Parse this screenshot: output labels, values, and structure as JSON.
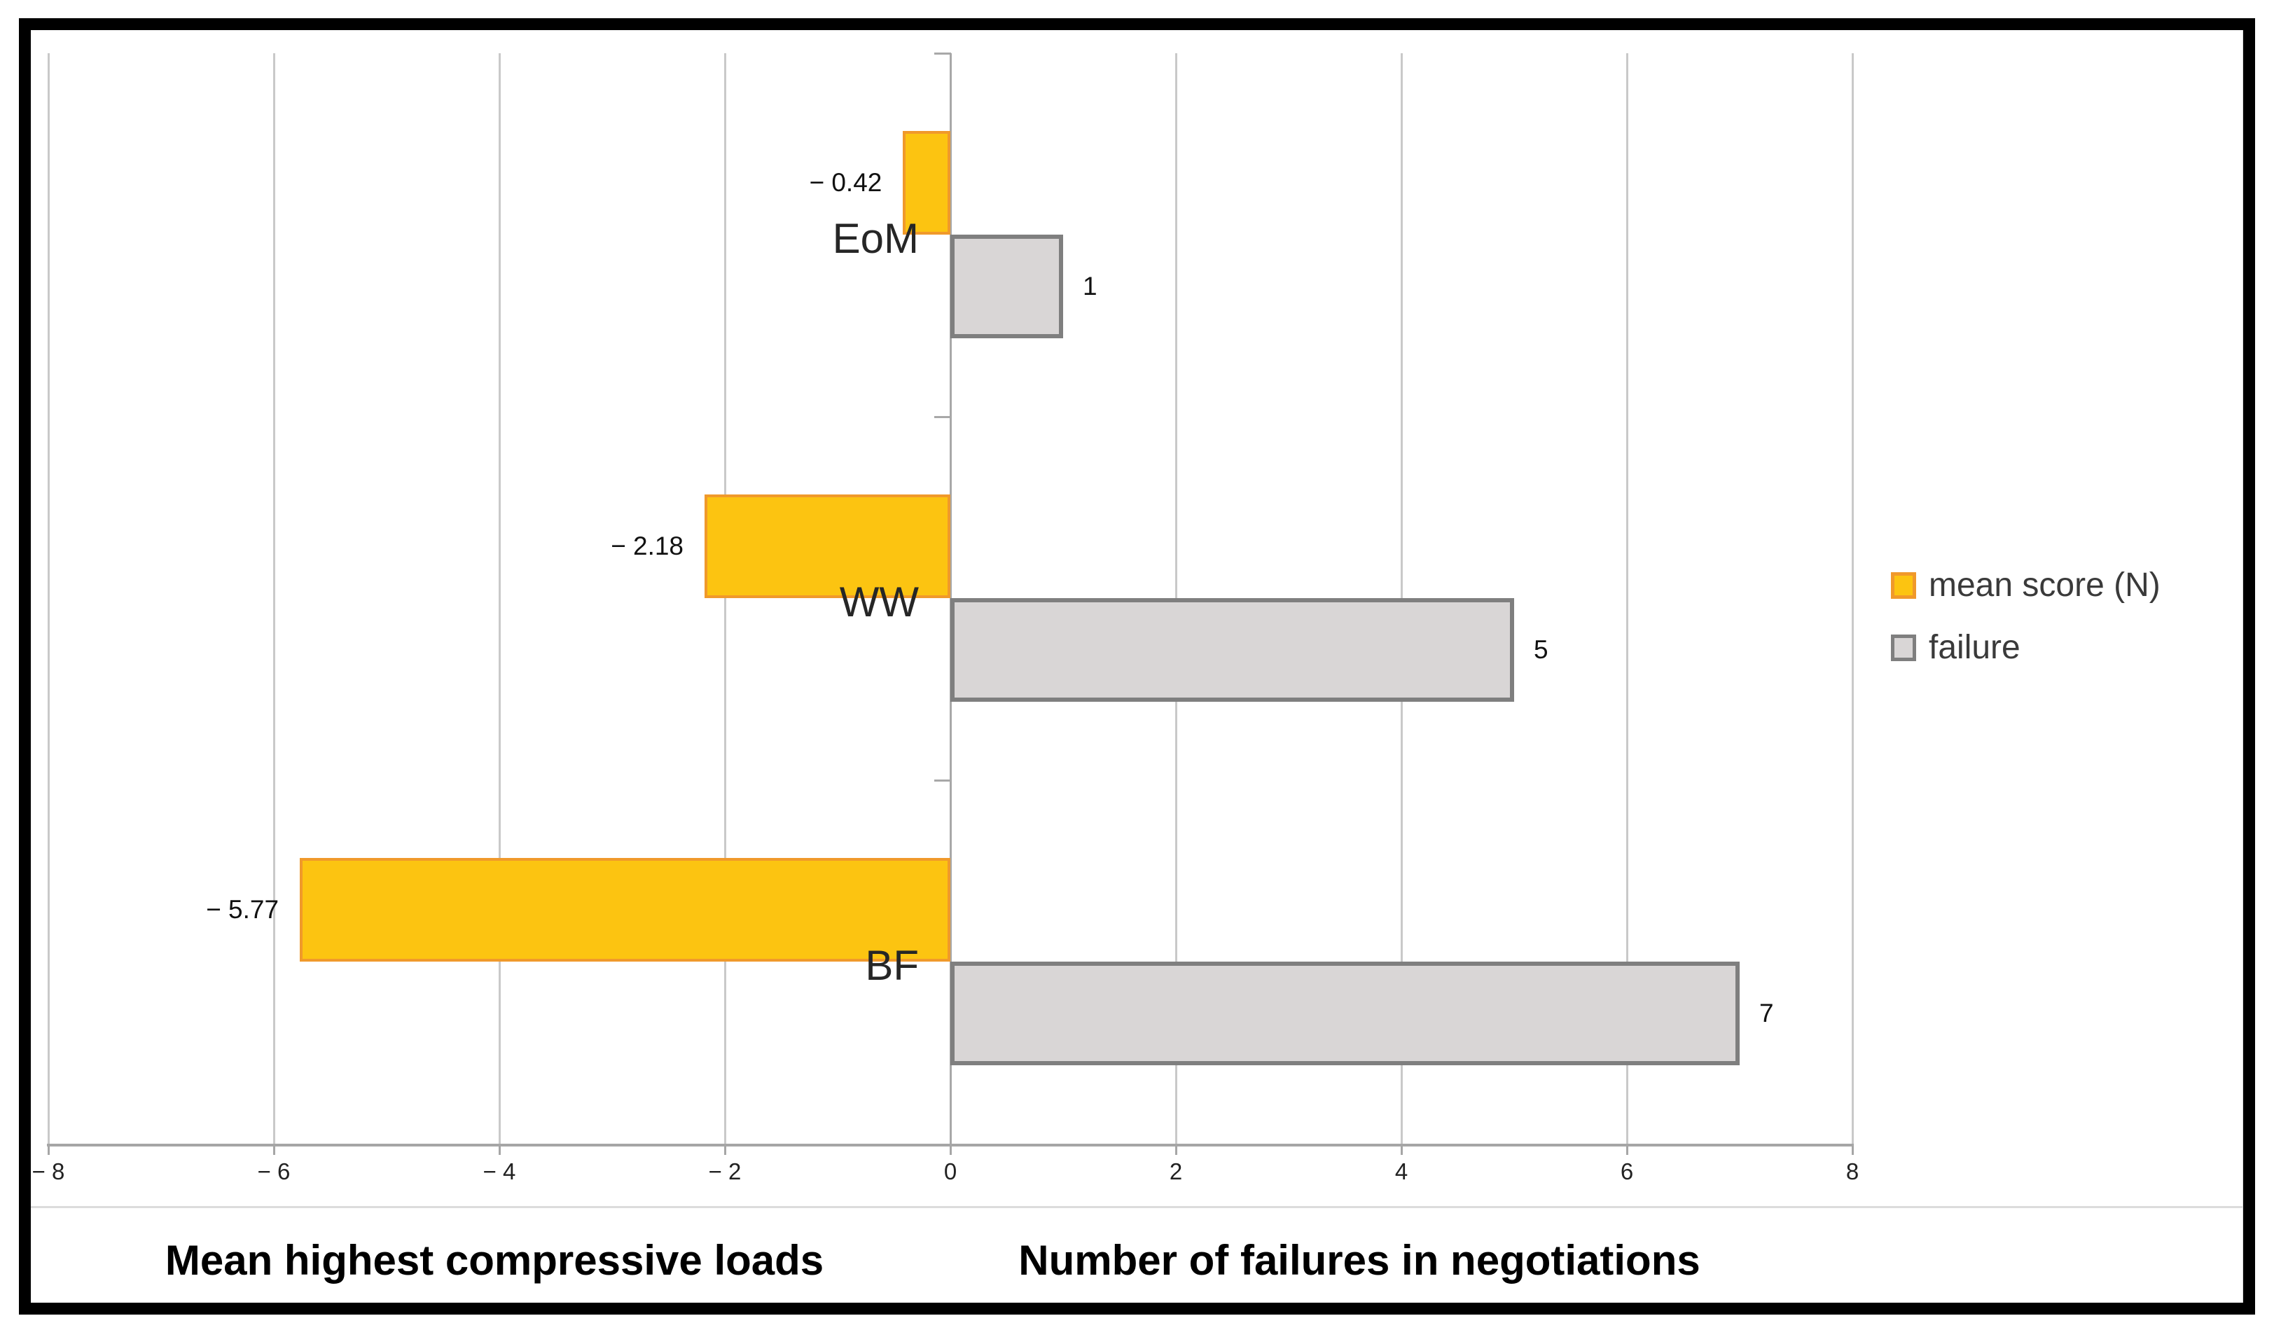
{
  "chart_data": {
    "type": "bar",
    "orientation": "horizontal-diverging",
    "categories": [
      "EoM",
      "WW",
      "BF"
    ],
    "series": [
      {
        "name": "mean score (N)",
        "key": "mean-score",
        "values": [
          -0.42,
          -2.18,
          -5.77
        ],
        "value_labels": [
          "− 0.42",
          "− 2.18",
          "− 5.77"
        ],
        "fill": "#fcc411",
        "border": "#f0992b"
      },
      {
        "name": "failure",
        "key": "failure",
        "values": [
          1,
          5,
          7
        ],
        "value_labels": [
          "1",
          "5",
          "7"
        ],
        "fill": "#d9d6d6",
        "border": "#7f7f7f"
      }
    ],
    "xlim": [
      -8,
      8
    ],
    "x_ticks": [
      -8,
      -6,
      -4,
      -2,
      0,
      2,
      4,
      6,
      8
    ],
    "x_tick_labels": [
      "− 8",
      "− 6",
      "− 4",
      "− 2",
      "0",
      "2",
      "4",
      "6",
      "8"
    ],
    "grid": true,
    "legend_position": "right",
    "legend": [
      {
        "label": "mean score (N)",
        "fill": "#fcc411",
        "border": "#f0992b"
      },
      {
        "label": "failure",
        "fill": "#d9d6d6",
        "border": "#7f7f7f"
      }
    ],
    "axis_titles": {
      "negative_side": "Mean highest compressive loads",
      "positive_side": "Number of failures in negotiations"
    },
    "colors": {
      "background": "#ffffff",
      "frame_border": "#000000",
      "gridline": "#c9c9c9",
      "zero_axis": "#a8a8a8",
      "baseline": "#a6a6a6",
      "divider": "#dcdcdc",
      "value_label_text": "#111111",
      "category_label_text": "#262626",
      "tick_label_text": "#222222",
      "axis_title_text": "#000000",
      "legend_text": "#3a3a3a"
    }
  }
}
